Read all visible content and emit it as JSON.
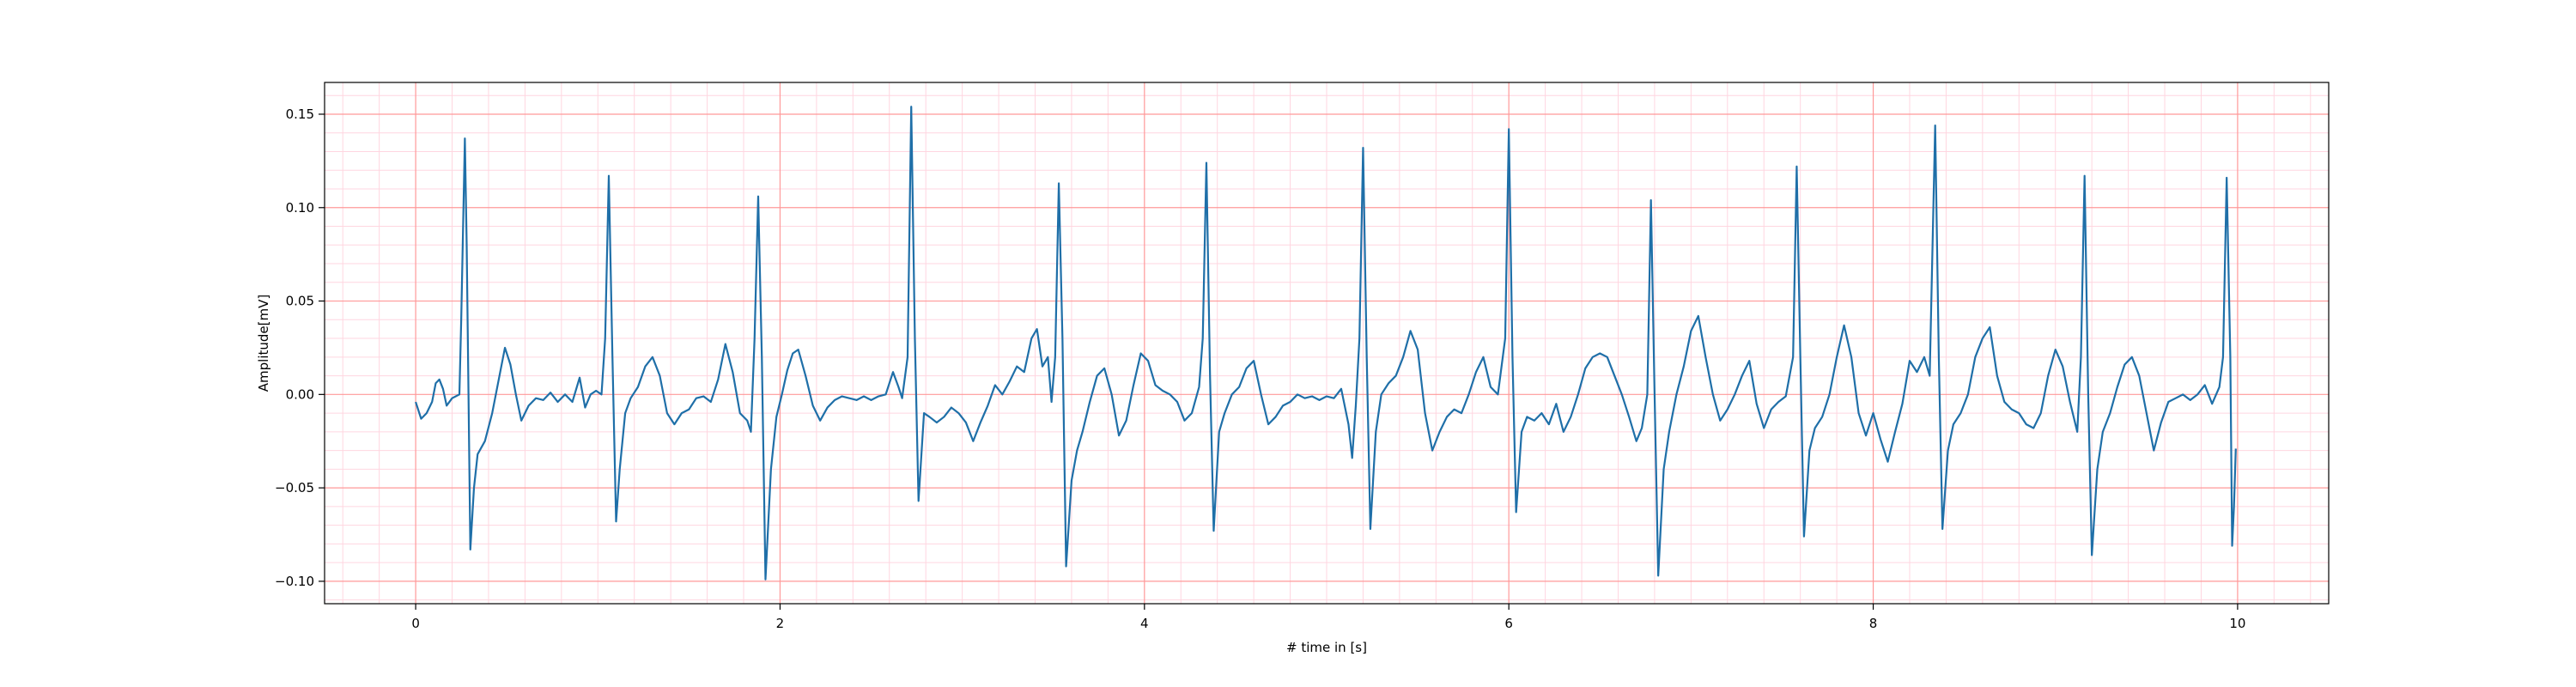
{
  "chart_data": {
    "type": "line",
    "title": "",
    "xlabel": "# time in [s]",
    "ylabel": "Amplitude[mV]",
    "xlim": [
      -0.5,
      10.5
    ],
    "ylim": [
      -0.112,
      0.167
    ],
    "x_ticks": [
      0,
      2,
      4,
      6,
      8,
      10
    ],
    "x_tick_labels": [
      "0",
      "2",
      "4",
      "6",
      "8",
      "10"
    ],
    "y_ticks": [
      -0.1,
      -0.05,
      0.0,
      0.05,
      0.1,
      0.15
    ],
    "y_tick_labels": [
      "−0.10",
      "−0.05",
      "0.00",
      "0.05",
      "0.10",
      "0.15"
    ],
    "grid": {
      "major": true,
      "minor": true,
      "major_color": "#ff9999",
      "minor_color": "#ffd6e0"
    },
    "line_color": "#1f6fa8",
    "series": [
      {
        "values": [
          [
            0.0,
            -0.004
          ],
          [
            0.03,
            -0.013
          ],
          [
            0.06,
            -0.01
          ],
          [
            0.09,
            -0.004
          ],
          [
            0.11,
            0.006
          ],
          [
            0.13,
            0.008
          ],
          [
            0.15,
            0.003
          ],
          [
            0.17,
            -0.006
          ],
          [
            0.2,
            -0.002
          ],
          [
            0.22,
            -0.001
          ],
          [
            0.24,
            0.0
          ],
          [
            0.25,
            0.04
          ],
          [
            0.27,
            0.137
          ],
          [
            0.28,
            0.08
          ],
          [
            0.29,
            0.0
          ],
          [
            0.3,
            -0.083
          ],
          [
            0.32,
            -0.05
          ],
          [
            0.34,
            -0.032
          ],
          [
            0.38,
            -0.025
          ],
          [
            0.42,
            -0.01
          ],
          [
            0.46,
            0.01
          ],
          [
            0.49,
            0.025
          ],
          [
            0.52,
            0.016
          ],
          [
            0.55,
            0.0
          ],
          [
            0.58,
            -0.014
          ],
          [
            0.62,
            -0.006
          ],
          [
            0.66,
            -0.002
          ],
          [
            0.7,
            -0.003
          ],
          [
            0.74,
            0.001
          ],
          [
            0.78,
            -0.004
          ],
          [
            0.82,
            0.0
          ],
          [
            0.86,
            -0.004
          ],
          [
            0.9,
            0.009
          ],
          [
            0.93,
            -0.007
          ],
          [
            0.96,
            0.0
          ],
          [
            0.99,
            0.002
          ],
          [
            1.02,
            0.0
          ],
          [
            1.04,
            0.03
          ],
          [
            1.06,
            0.117
          ],
          [
            1.08,
            0.02
          ],
          [
            1.1,
            -0.068
          ],
          [
            1.12,
            -0.04
          ],
          [
            1.15,
            -0.01
          ],
          [
            1.18,
            -0.002
          ],
          [
            1.22,
            0.004
          ],
          [
            1.26,
            0.015
          ],
          [
            1.3,
            0.02
          ],
          [
            1.34,
            0.01
          ],
          [
            1.38,
            -0.01
          ],
          [
            1.42,
            -0.016
          ],
          [
            1.46,
            -0.01
          ],
          [
            1.5,
            -0.008
          ],
          [
            1.54,
            -0.002
          ],
          [
            1.58,
            -0.001
          ],
          [
            1.62,
            -0.004
          ],
          [
            1.66,
            0.008
          ],
          [
            1.7,
            0.027
          ],
          [
            1.74,
            0.012
          ],
          [
            1.78,
            -0.01
          ],
          [
            1.82,
            -0.014
          ],
          [
            1.84,
            -0.02
          ],
          [
            1.86,
            0.03
          ],
          [
            1.88,
            0.106
          ],
          [
            1.9,
            0.02
          ],
          [
            1.92,
            -0.099
          ],
          [
            1.95,
            -0.04
          ],
          [
            1.98,
            -0.012
          ],
          [
            2.01,
            0.0
          ],
          [
            2.04,
            0.013
          ],
          [
            2.07,
            0.022
          ],
          [
            2.1,
            0.024
          ],
          [
            2.14,
            0.01
          ],
          [
            2.18,
            -0.006
          ],
          [
            2.22,
            -0.014
          ],
          [
            2.26,
            -0.007
          ],
          [
            2.3,
            -0.003
          ],
          [
            2.34,
            -0.001
          ],
          [
            2.38,
            -0.002
          ],
          [
            2.42,
            -0.003
          ],
          [
            2.46,
            -0.001
          ],
          [
            2.5,
            -0.003
          ],
          [
            2.54,
            -0.001
          ],
          [
            2.58,
            0.0
          ],
          [
            2.62,
            0.012
          ],
          [
            2.65,
            0.004
          ],
          [
            2.67,
            -0.002
          ],
          [
            2.7,
            0.02
          ],
          [
            2.72,
            0.154
          ],
          [
            2.74,
            0.03
          ],
          [
            2.76,
            -0.057
          ],
          [
            2.79,
            -0.01
          ],
          [
            2.82,
            -0.012
          ],
          [
            2.86,
            -0.015
          ],
          [
            2.9,
            -0.012
          ],
          [
            2.94,
            -0.007
          ],
          [
            2.98,
            -0.01
          ],
          [
            3.02,
            -0.015
          ],
          [
            3.06,
            -0.025
          ],
          [
            3.1,
            -0.015
          ],
          [
            3.14,
            -0.006
          ],
          [
            3.18,
            0.005
          ],
          [
            3.22,
            0.0
          ],
          [
            3.26,
            0.007
          ],
          [
            3.3,
            0.015
          ],
          [
            3.34,
            0.012
          ],
          [
            3.38,
            0.03
          ],
          [
            3.41,
            0.035
          ],
          [
            3.44,
            0.015
          ],
          [
            3.47,
            0.02
          ],
          [
            3.49,
            -0.004
          ],
          [
            3.51,
            0.02
          ],
          [
            3.53,
            0.113
          ],
          [
            3.55,
            0.03
          ],
          [
            3.57,
            -0.092
          ],
          [
            3.6,
            -0.046
          ],
          [
            3.63,
            -0.03
          ],
          [
            3.66,
            -0.02
          ],
          [
            3.7,
            -0.004
          ],
          [
            3.74,
            0.01
          ],
          [
            3.78,
            0.014
          ],
          [
            3.82,
            0.0
          ],
          [
            3.86,
            -0.022
          ],
          [
            3.9,
            -0.014
          ],
          [
            3.94,
            0.005
          ],
          [
            3.98,
            0.022
          ],
          [
            4.02,
            0.018
          ],
          [
            4.06,
            0.005
          ],
          [
            4.1,
            0.002
          ],
          [
            4.14,
            0.0
          ],
          [
            4.18,
            -0.004
          ],
          [
            4.22,
            -0.014
          ],
          [
            4.26,
            -0.01
          ],
          [
            4.3,
            0.004
          ],
          [
            4.32,
            0.03
          ],
          [
            4.34,
            0.124
          ],
          [
            4.36,
            0.01
          ],
          [
            4.38,
            -0.073
          ],
          [
            4.41,
            -0.02
          ],
          [
            4.44,
            -0.01
          ],
          [
            4.48,
            0.0
          ],
          [
            4.52,
            0.004
          ],
          [
            4.56,
            0.014
          ],
          [
            4.6,
            0.018
          ],
          [
            4.64,
            0.0
          ],
          [
            4.68,
            -0.016
          ],
          [
            4.72,
            -0.012
          ],
          [
            4.76,
            -0.006
          ],
          [
            4.8,
            -0.004
          ],
          [
            4.84,
            0.0
          ],
          [
            4.88,
            -0.002
          ],
          [
            4.92,
            -0.001
          ],
          [
            4.96,
            -0.003
          ],
          [
            5.0,
            -0.001
          ],
          [
            5.04,
            -0.002
          ],
          [
            5.08,
            0.003
          ],
          [
            5.12,
            -0.016
          ],
          [
            5.14,
            -0.034
          ],
          [
            5.16,
            -0.006
          ],
          [
            5.18,
            0.03
          ],
          [
            5.2,
            0.132
          ],
          [
            5.22,
            0.02
          ],
          [
            5.24,
            -0.072
          ],
          [
            5.27,
            -0.02
          ],
          [
            5.3,
            0.0
          ],
          [
            5.34,
            0.006
          ],
          [
            5.38,
            0.01
          ],
          [
            5.42,
            0.02
          ],
          [
            5.46,
            0.034
          ],
          [
            5.5,
            0.024
          ],
          [
            5.54,
            -0.01
          ],
          [
            5.58,
            -0.03
          ],
          [
            5.62,
            -0.02
          ],
          [
            5.66,
            -0.012
          ],
          [
            5.7,
            -0.008
          ],
          [
            5.74,
            -0.01
          ],
          [
            5.78,
            0.0
          ],
          [
            5.82,
            0.012
          ],
          [
            5.86,
            0.02
          ],
          [
            5.9,
            0.004
          ],
          [
            5.94,
            0.0
          ],
          [
            5.98,
            0.03
          ],
          [
            6.0,
            0.142
          ],
          [
            6.02,
            0.02
          ],
          [
            6.04,
            -0.063
          ],
          [
            6.07,
            -0.02
          ],
          [
            6.1,
            -0.012
          ],
          [
            6.14,
            -0.014
          ],
          [
            6.18,
            -0.01
          ],
          [
            6.22,
            -0.016
          ],
          [
            6.26,
            -0.005
          ],
          [
            6.3,
            -0.02
          ],
          [
            6.34,
            -0.012
          ],
          [
            6.38,
            0.0
          ],
          [
            6.42,
            0.014
          ],
          [
            6.46,
            0.02
          ],
          [
            6.5,
            0.022
          ],
          [
            6.54,
            0.02
          ],
          [
            6.58,
            0.01
          ],
          [
            6.62,
            0.0
          ],
          [
            6.66,
            -0.012
          ],
          [
            6.7,
            -0.025
          ],
          [
            6.73,
            -0.018
          ],
          [
            6.76,
            0.0
          ],
          [
            6.78,
            0.104
          ],
          [
            6.8,
            0.0
          ],
          [
            6.82,
            -0.097
          ],
          [
            6.85,
            -0.04
          ],
          [
            6.88,
            -0.02
          ],
          [
            6.92,
            0.0
          ],
          [
            6.96,
            0.015
          ],
          [
            7.0,
            0.034
          ],
          [
            7.04,
            0.042
          ],
          [
            7.08,
            0.02
          ],
          [
            7.12,
            0.0
          ],
          [
            7.16,
            -0.014
          ],
          [
            7.2,
            -0.008
          ],
          [
            7.24,
            0.0
          ],
          [
            7.28,
            0.01
          ],
          [
            7.32,
            0.018
          ],
          [
            7.36,
            -0.005
          ],
          [
            7.4,
            -0.018
          ],
          [
            7.44,
            -0.008
          ],
          [
            7.48,
            -0.004
          ],
          [
            7.52,
            -0.001
          ],
          [
            7.56,
            0.02
          ],
          [
            7.58,
            0.122
          ],
          [
            7.6,
            0.02
          ],
          [
            7.62,
            -0.076
          ],
          [
            7.65,
            -0.03
          ],
          [
            7.68,
            -0.018
          ],
          [
            7.72,
            -0.012
          ],
          [
            7.76,
            0.0
          ],
          [
            7.8,
            0.02
          ],
          [
            7.84,
            0.037
          ],
          [
            7.88,
            0.02
          ],
          [
            7.92,
            -0.01
          ],
          [
            7.96,
            -0.022
          ],
          [
            8.0,
            -0.01
          ],
          [
            8.04,
            -0.024
          ],
          [
            8.08,
            -0.036
          ],
          [
            8.12,
            -0.02
          ],
          [
            8.16,
            -0.005
          ],
          [
            8.2,
            0.018
          ],
          [
            8.24,
            0.012
          ],
          [
            8.28,
            0.02
          ],
          [
            8.31,
            0.01
          ],
          [
            8.34,
            0.144
          ],
          [
            8.36,
            0.02
          ],
          [
            8.38,
            -0.072
          ],
          [
            8.41,
            -0.03
          ],
          [
            8.44,
            -0.016
          ],
          [
            8.48,
            -0.01
          ],
          [
            8.52,
            0.0
          ],
          [
            8.56,
            0.02
          ],
          [
            8.6,
            0.03
          ],
          [
            8.64,
            0.036
          ],
          [
            8.68,
            0.01
          ],
          [
            8.72,
            -0.004
          ],
          [
            8.76,
            -0.008
          ],
          [
            8.8,
            -0.01
          ],
          [
            8.84,
            -0.016
          ],
          [
            8.88,
            -0.018
          ],
          [
            8.92,
            -0.01
          ],
          [
            8.96,
            0.01
          ],
          [
            9.0,
            0.024
          ],
          [
            9.04,
            0.015
          ],
          [
            9.08,
            -0.004
          ],
          [
            9.12,
            -0.02
          ],
          [
            9.14,
            0.02
          ],
          [
            9.16,
            0.117
          ],
          [
            9.18,
            0.0
          ],
          [
            9.2,
            -0.086
          ],
          [
            9.23,
            -0.04
          ],
          [
            9.26,
            -0.02
          ],
          [
            9.3,
            -0.01
          ],
          [
            9.34,
            0.004
          ],
          [
            9.38,
            0.016
          ],
          [
            9.42,
            0.02
          ],
          [
            9.46,
            0.01
          ],
          [
            9.5,
            -0.01
          ],
          [
            9.54,
            -0.03
          ],
          [
            9.58,
            -0.015
          ],
          [
            9.62,
            -0.004
          ],
          [
            9.66,
            -0.002
          ],
          [
            9.7,
            0.0
          ],
          [
            9.74,
            -0.003
          ],
          [
            9.78,
            0.0
          ],
          [
            9.82,
            0.005
          ],
          [
            9.86,
            -0.005
          ],
          [
            9.9,
            0.004
          ],
          [
            9.92,
            0.02
          ],
          [
            9.94,
            0.116
          ],
          [
            9.96,
            0.02
          ],
          [
            9.97,
            -0.081
          ],
          [
            9.98,
            -0.06
          ],
          [
            9.99,
            -0.029
          ]
        ]
      }
    ]
  }
}
